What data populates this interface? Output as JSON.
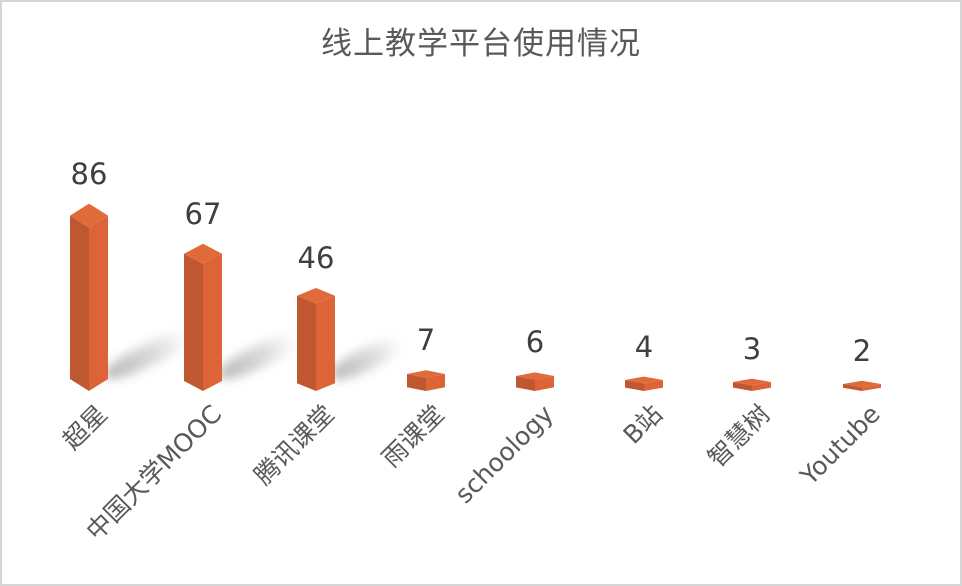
{
  "frame": {
    "background": "#ffffff",
    "border_color": "#d6d6d6"
  },
  "chart_data": {
    "type": "bar",
    "variant": "3d-column",
    "title": "线上教学平台使用情况",
    "categories": [
      "超星",
      "中国大学MOOC",
      "腾讯课堂",
      "雨课堂",
      "schoology",
      "B站",
      "智慧树",
      "Youtube"
    ],
    "values": [
      86,
      67,
      46,
      7,
      6,
      4,
      3,
      2
    ],
    "xlabel": "",
    "ylabel": "",
    "ylim": [
      0,
      90
    ],
    "legend": false,
    "gridlines": false,
    "axes_visible": false,
    "data_labels": true,
    "colors": {
      "bar_left": "#bf5730",
      "bar_right": "#dd6436",
      "bar_top": "#e06a3a",
      "value_label": "#3f3f3f",
      "category_label": "#595959",
      "title": "#595959",
      "shadow": "#8a8a8a"
    }
  }
}
